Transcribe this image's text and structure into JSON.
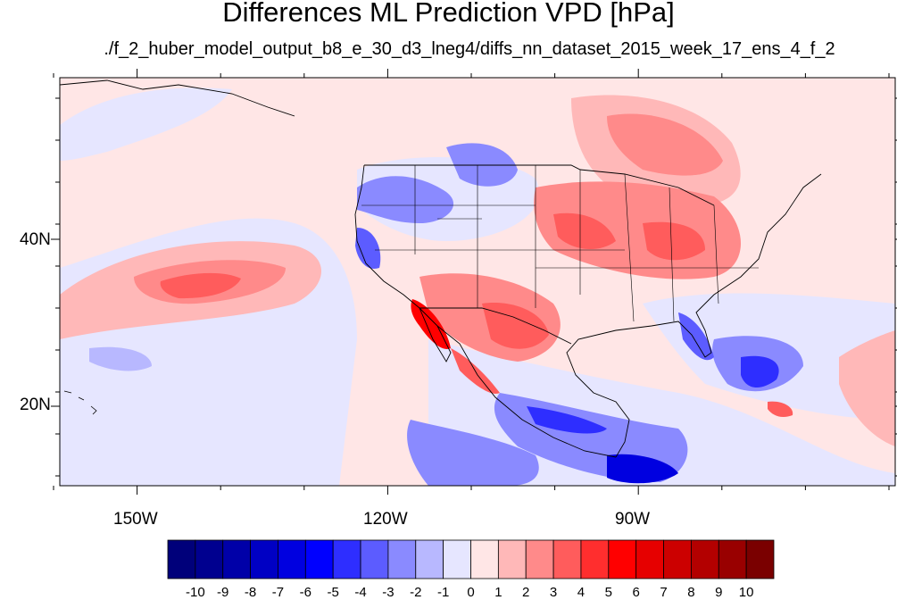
{
  "title": "Differences ML Prediction VPD [hPa]",
  "subtitle": "./f_2_huber_model_output_b8_e_30_d3_lneg4/diffs_nn_dataset_2015_week_17_ens_4_f_2",
  "lon_labels": [
    "150W",
    "120W",
    "90W"
  ],
  "lat_labels": [
    "40N",
    "20N"
  ],
  "colorbar": {
    "labels": [
      "-10",
      "-9",
      "-8",
      "-7",
      "-6",
      "-5",
      "-4",
      "-3",
      "-2",
      "-1",
      "0",
      "1",
      "2",
      "3",
      "4",
      "5",
      "6",
      "7",
      "8",
      "9",
      "10"
    ],
    "colors": [
      "#00007a",
      "#00008f",
      "#0000a8",
      "#0000c4",
      "#0000e0",
      "#0000ff",
      "#2e2eff",
      "#5c5cff",
      "#8a8aff",
      "#b8b8ff",
      "#e6e6ff",
      "#ffe6e6",
      "#ffb8b8",
      "#ff8a8a",
      "#ff5c5c",
      "#ff2e2e",
      "#ff0000",
      "#e60000",
      "#cc0000",
      "#b30000",
      "#990000",
      "#7a0000"
    ]
  },
  "map_extent": {
    "lon": [
      -160,
      -60
    ],
    "lat": [
      10,
      60
    ]
  }
}
